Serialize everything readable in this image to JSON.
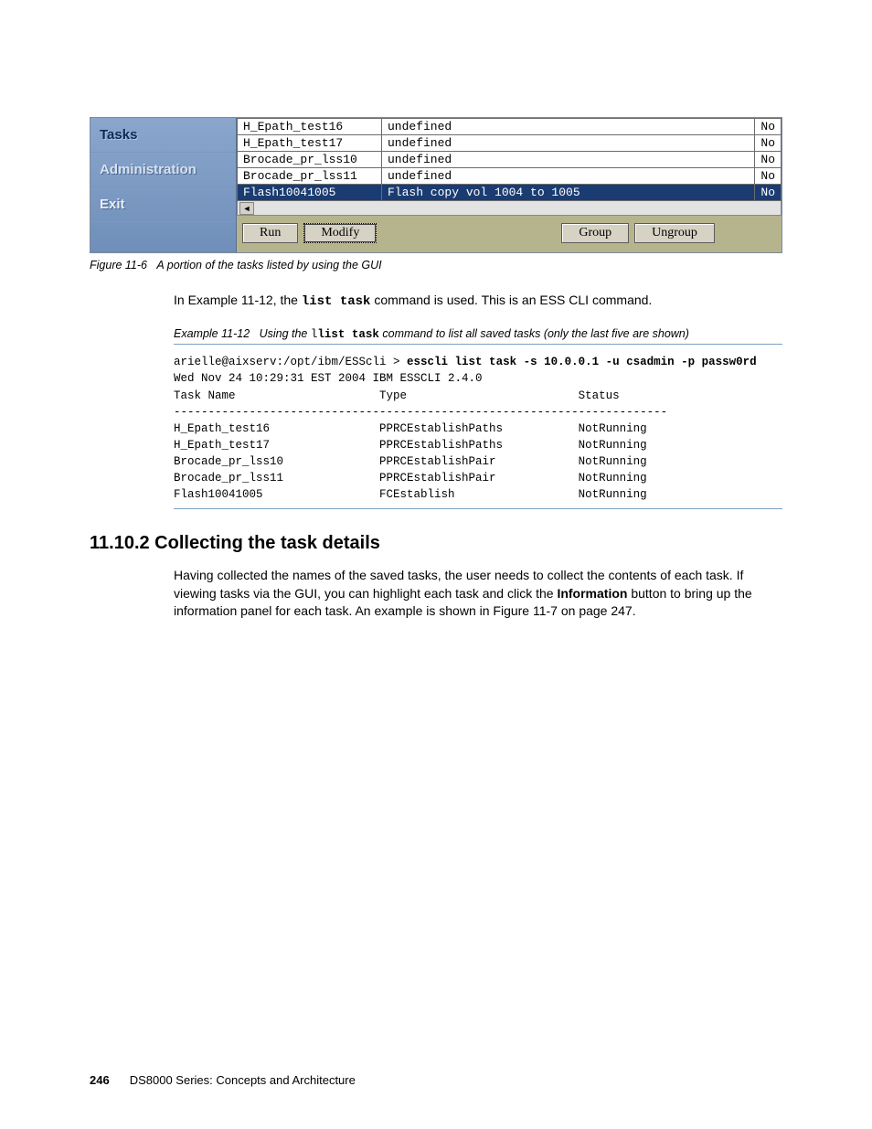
{
  "gui": {
    "sidebar": [
      {
        "label": "Tasks",
        "cls": "tasks"
      },
      {
        "label": "Administration",
        "cls": "admin"
      },
      {
        "label": "Exit",
        "cls": "exit"
      }
    ],
    "rows": [
      {
        "c1": "H_Epath_test16",
        "c2": "undefined",
        "c3": "No",
        "sel": false
      },
      {
        "c1": "H_Epath_test17",
        "c2": "undefined",
        "c3": "No",
        "sel": false
      },
      {
        "c1": "Brocade_pr_lss10",
        "c2": "undefined",
        "c3": "No",
        "sel": false
      },
      {
        "c1": "Brocade_pr_lss11",
        "c2": "undefined",
        "c3": "No",
        "sel": false
      },
      {
        "c1": "Flash10041005",
        "c2": "Flash copy vol 1004 to 1005",
        "c3": "No",
        "sel": true
      }
    ],
    "col_widths": [
      "158px",
      "auto",
      "28px"
    ],
    "buttons": {
      "run": "Run",
      "modify": "Modify",
      "group": "Group",
      "ungroup": "Ungroup"
    }
  },
  "figure_caption_label": "Figure 11-6",
  "figure_caption_text": "A portion of the tasks listed by using the GUI",
  "body_para_1a": "In Example 11-12, the ",
  "body_para_1_cmd": "list task",
  "body_para_1b": " command is used. This is an ESS CLI command.",
  "example_caption_label": "Example 11-12",
  "example_caption_a": "Using the ",
  "example_caption_cmd": "list task",
  "example_caption_b": " command to list all saved tasks (only the last five are shown)",
  "cli": {
    "prompt": "arielle@aixserv:/opt/ibm/ESScli > ",
    "command": "esscli list task -s 10.0.0.1 -u csadmin -p passw0rd",
    "date": "Wed Nov 24 10:29:31 EST 2004 IBM ESSCLI 2.4.0",
    "header_task": "Task Name",
    "header_type": "Type",
    "header_status": "Status",
    "sep": "------------------------------------------------------------------------",
    "rows": [
      {
        "name": "H_Epath_test16",
        "type": "PPRCEstablishPaths",
        "status": "NotRunning"
      },
      {
        "name": "H_Epath_test17",
        "type": "PPRCEstablishPaths",
        "status": "NotRunning"
      },
      {
        "name": "Brocade_pr_lss10",
        "type": "PPRCEstablishPair",
        "status": "NotRunning"
      },
      {
        "name": "Brocade_pr_lss11",
        "type": "PPRCEstablishPair",
        "status": "NotRunning"
      },
      {
        "name": "Flash10041005",
        "type": "FCEstablish",
        "status": "NotRunning"
      }
    ]
  },
  "section_heading": "11.10.2  Collecting the task details",
  "para_a": "Having collected the names of the saved tasks, the user needs to collect the contents of each task. If viewing tasks via the GUI, you can highlight each task and click the ",
  "para_bold": "Information",
  "para_b": " button to bring up the information panel for each task. An example is shown in Figure 11-7 on page 247.",
  "footer_page": "246",
  "footer_title": "DS8000 Series: Concepts and Architecture",
  "colors": {
    "sidebar_top": "#8aa6cd",
    "sidebar_bottom": "#6f8fb9",
    "pane_bg": "#b6b48d",
    "sel_bg": "#1a3c72",
    "rule": "#7da1c4"
  }
}
